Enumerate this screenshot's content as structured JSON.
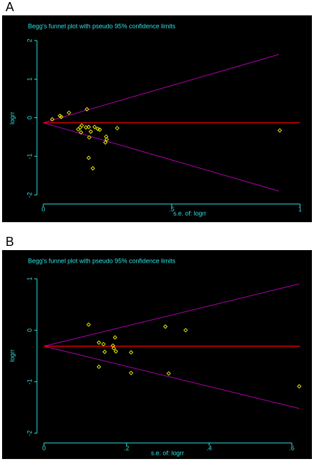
{
  "chart_data": [
    {
      "type": "scatter",
      "panel_label": "A",
      "title": "Begg's funnel plot with pseudo 95% confidence limits",
      "x_label": "s.e. of: logrr",
      "y_label": "logrr",
      "x": [
        0.035,
        0.065,
        0.07,
        0.1,
        0.17,
        0.136,
        0.144,
        0.15,
        0.147,
        0.166,
        0.177,
        0.185,
        0.179,
        0.2,
        0.212,
        0.22,
        0.245,
        0.247,
        0.242,
        0.177,
        0.193,
        0.288,
        0.921
      ],
      "values": [
        -0.04,
        0.05,
        0.02,
        0.13,
        0.22,
        -0.3,
        -0.25,
        -0.2,
        -0.38,
        -0.25,
        -0.24,
        -0.36,
        -0.51,
        -0.24,
        -0.29,
        -0.31,
        -0.49,
        -0.56,
        -0.64,
        -1.04,
        -1.31,
        -0.27,
        -0.33
      ],
      "pooled_estimate": -0.13,
      "confidence_limits": {
        "x": [
          0,
          0.918
        ],
        "upper": [
          -0.13,
          1.64
        ],
        "lower": [
          -0.13,
          -1.9
        ]
      },
      "xlim": [
        0,
        1
      ],
      "ylim": [
        -2,
        2
      ],
      "xticks": [
        0,
        {
          "value": 0.5,
          "label": ".5"
        },
        1
      ],
      "yticks": [
        2,
        1,
        0,
        -1,
        -2
      ],
      "marker_color": "#e8e800",
      "pooled_color": "#ff0000",
      "limits_color": "#b000b0"
    },
    {
      "type": "scatter",
      "panel_label": "B",
      "title": "Begg's funnel plot with pseudo 95% confidence limits",
      "x_label": "s.e. of: logrr",
      "y_label": "logrr",
      "x": [
        0.108,
        0.133,
        0.144,
        0.147,
        0.133,
        0.167,
        0.169,
        0.172,
        0.174,
        0.211,
        0.211,
        0.294,
        0.302,
        0.343,
        0.618
      ],
      "values": [
        0.11,
        -0.24,
        -0.27,
        -0.42,
        -0.71,
        -0.3,
        -0.35,
        -0.14,
        -0.41,
        -0.43,
        -0.83,
        0.07,
        -0.84,
        0.0,
        -1.09
      ],
      "pooled_estimate": -0.31,
      "confidence_limits": {
        "x": [
          0,
          0.618
        ],
        "upper": [
          -0.31,
          0.9
        ],
        "lower": [
          -0.31,
          -1.52
        ]
      },
      "xlim": [
        0,
        0.62
      ],
      "ylim": [
        -2,
        1
      ],
      "xticks": [
        0,
        {
          "value": 0.2,
          "label": ".2"
        },
        {
          "value": 0.4,
          "label": ".4"
        },
        {
          "value": 0.6,
          "label": ".6"
        }
      ],
      "yticks": [
        1,
        0,
        -1,
        -2
      ],
      "marker_color": "#e8e800",
      "pooled_color": "#ff0000",
      "limits_color": "#b000b0"
    }
  ]
}
